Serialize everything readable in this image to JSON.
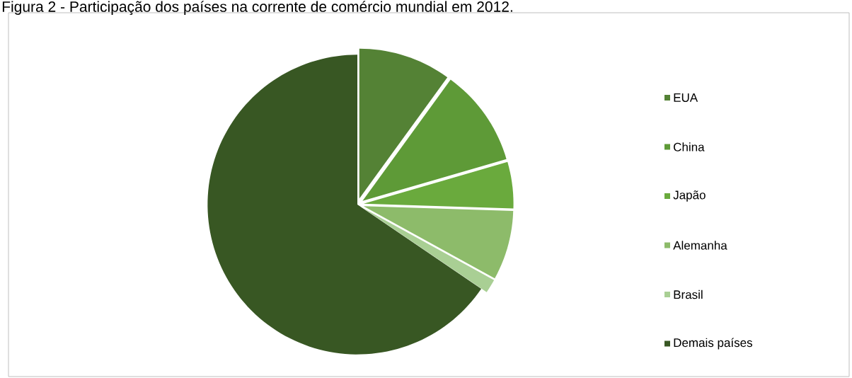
{
  "chart_data": {
    "type": "pie",
    "title": "Figura 2 - Participação dos países na corrente de comércio mundial em 2012.",
    "categories": [
      "EUA",
      "China",
      "Japão",
      "Alemanha",
      "Brasil",
      "Demais países"
    ],
    "values": [
      10,
      10.5,
      5,
      7.5,
      1.5,
      65.5
    ],
    "colors": [
      "#548235",
      "#5e9a37",
      "#6aaa3d",
      "#8dbb6a",
      "#a9cf94",
      "#385723"
    ],
    "legend": "right"
  }
}
